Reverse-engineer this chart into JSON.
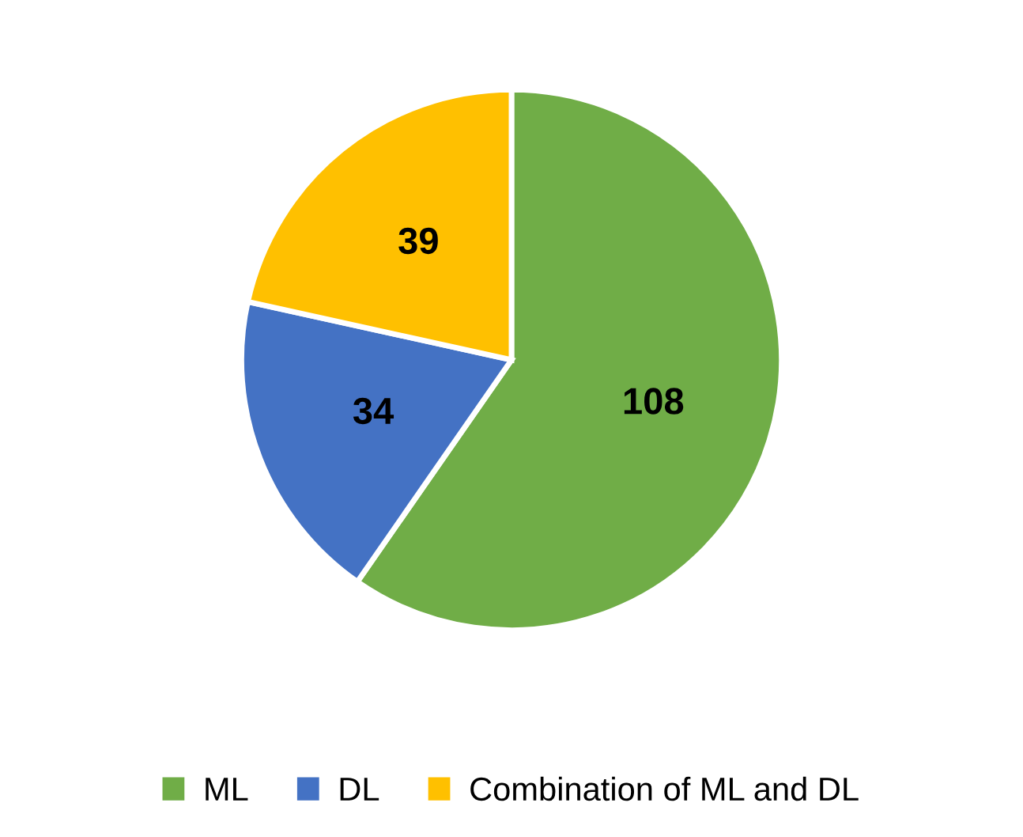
{
  "chart_data": {
    "type": "pie",
    "categories": [
      "ML",
      "DL",
      "Combination of ML and DL"
    ],
    "values": [
      108,
      34,
      39
    ],
    "colors": [
      "#70ad47",
      "#4472c4",
      "#ffc000"
    ],
    "data_labels": true,
    "legend": "bottom"
  }
}
